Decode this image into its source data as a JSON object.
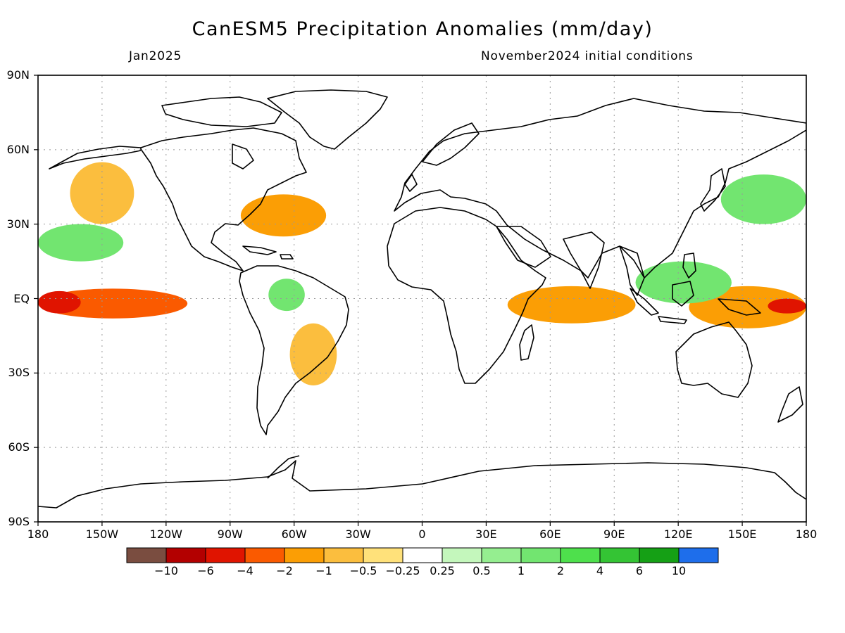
{
  "title": "CanESM5 Precipitation Anomalies (mm/day)",
  "subtitle_left": "Jan2025",
  "subtitle_right": "November2024 initial conditions",
  "lat_labels": [
    "90N",
    "60N",
    "30N",
    "EQ",
    "30S",
    "60S",
    "90S"
  ],
  "lon_labels": [
    "180",
    "150W",
    "120W",
    "90W",
    "60W",
    "30W",
    "0",
    "30E",
    "60E",
    "90E",
    "120E",
    "150E",
    "180"
  ],
  "colorbar": {
    "labels": [
      "−10",
      "−6",
      "−4",
      "−2",
      "−1",
      "−0.5",
      "−0.25",
      "0.25",
      "0.5",
      "1",
      "2",
      "4",
      "6",
      "10"
    ],
    "colors": [
      "#7a4d40",
      "#b30000",
      "#e01400",
      "#fa5a00",
      "#fb9e05",
      "#fbbe3e",
      "#ffe17a",
      "#ffffff",
      "#c4f7bc",
      "#95ee90",
      "#72e570",
      "#4ee04c",
      "#34c434",
      "#15a015",
      "#1e6eeb"
    ]
  },
  "map": {
    "projection": "cylindrical-equidistant",
    "lon_range": [
      -180,
      180
    ],
    "lat_range": [
      -90,
      90
    ],
    "grid": "dotted",
    "anomaly_regions": [
      {
        "name": "central-pacific-equatorial-dry",
        "level": -4,
        "lon": [
          -180,
          -110
        ],
        "lat": [
          -8,
          4
        ]
      },
      {
        "name": "central-pacific-equatorial-core",
        "level": -6,
        "lon": [
          -180,
          -160
        ],
        "lat": [
          -6,
          3
        ]
      },
      {
        "name": "western-pacific-dry-core",
        "level": -6,
        "lon": [
          162,
          180
        ],
        "lat": [
          -6,
          0
        ]
      },
      {
        "name": "western-pacific-dry",
        "level": -2,
        "lon": [
          125,
          180
        ],
        "lat": [
          -12,
          5
        ]
      },
      {
        "name": "northeast-pacific-dry",
        "level": -1,
        "lon": [
          -165,
          -135
        ],
        "lat": [
          30,
          55
        ]
      },
      {
        "name": "gulf-stream-dry",
        "level": -2,
        "lon": [
          -85,
          -45
        ],
        "lat": [
          25,
          42
        ]
      },
      {
        "name": "amazon-wet",
        "level": 1,
        "lon": [
          -72,
          -55
        ],
        "lat": [
          -5,
          8
        ]
      },
      {
        "name": "southeast-south-america-dry",
        "level": -1,
        "lon": [
          -62,
          -40
        ],
        "lat": [
          -35,
          -10
        ]
      },
      {
        "name": "indian-ocean-dry",
        "level": -2,
        "lon": [
          40,
          100
        ],
        "lat": [
          -10,
          5
        ]
      },
      {
        "name": "maritime-continent-wet",
        "level": 2,
        "lon": [
          100,
          145
        ],
        "lat": [
          -2,
          15
        ]
      },
      {
        "name": "north-pacific-wet",
        "level": 1,
        "lon": [
          -180,
          -140
        ],
        "lat": [
          15,
          30
        ]
      },
      {
        "name": "northwest-pacific-wet",
        "level": 1,
        "lon": [
          140,
          180
        ],
        "lat": [
          30,
          50
        ]
      }
    ]
  }
}
